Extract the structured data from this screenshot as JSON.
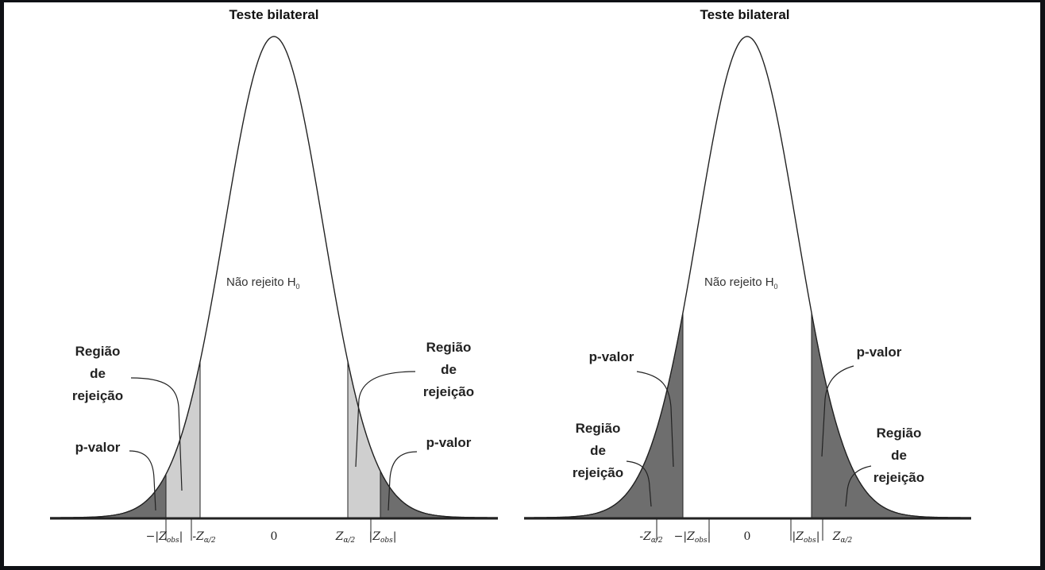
{
  "left": {
    "title": "Teste bilateral",
    "center_label": "Não rejeito H",
    "center_label_sub": "0",
    "reject_label": [
      "Região",
      "de",
      "rejeição"
    ],
    "reject_label_right": [
      "Região",
      "de",
      "rejeição"
    ],
    "pvalue_label": "p-valor",
    "pvalue_label_right": "p-valor",
    "ticks": {
      "neg_zobs": "−|Z",
      "neg_zobs_sub": "obs",
      "neg_zobs_end": "|",
      "neg_zalpha": "-Z",
      "neg_zalpha_sub": "α/2",
      "zero": "0",
      "zalpha": "Z",
      "zalpha_sub": "α/2",
      "zobs": "|Z",
      "zobs_sub": "obs",
      "zobs_end": "|"
    }
  },
  "right": {
    "title": "Teste bilateral",
    "center_label": "Não rejeito H",
    "center_label_sub": "0",
    "reject_label": [
      "Região",
      "de",
      "rejeição"
    ],
    "reject_label_right": [
      "Região",
      "de",
      "rejeição"
    ],
    "pvalue_label": "p-valor",
    "pvalue_label_right": "p-valor",
    "ticks": {
      "neg_zalpha": "-Z",
      "neg_zalpha_sub": "α/2",
      "neg_zobs": "−|Z",
      "neg_zobs_sub": "obs",
      "neg_zobs_end": "|",
      "zero": "0",
      "zobs": "|Z",
      "zobs_sub": "obs",
      "zobs_end": "|",
      "zalpha": "Z",
      "zalpha_sub": "α/2"
    }
  },
  "colors": {
    "background": "#ffffff",
    "frame": "#0f1115",
    "curve": "#222222",
    "rejection_fill": "#cfcfcf",
    "pvalue_fill": "#6e6e6e"
  }
}
